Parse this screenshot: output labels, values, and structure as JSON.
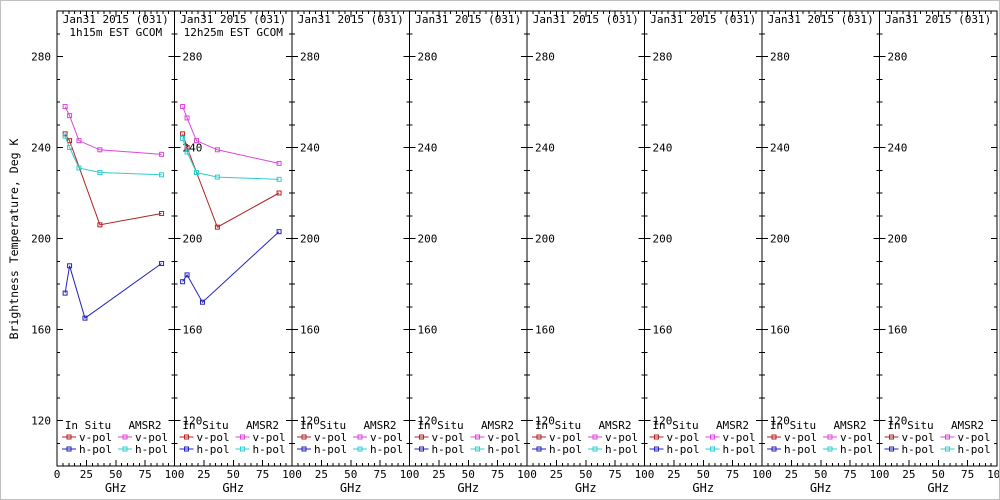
{
  "figure": {
    "ylabel": "Brightness Temperature, Deg K"
  },
  "colors": {
    "insitu_vpol": "#b22222",
    "amsr2_vpol": "#dd44dd",
    "insitu_hpol": "#2222bb",
    "amsr2_hpol": "#33cccc",
    "frame": "#000000",
    "background": "#ffffff"
  },
  "chart_data": {
    "type": "line",
    "xlabel": "GHz",
    "ylabel": "Brightness Temperature, Deg K",
    "x_range": [
      0,
      100
    ],
    "y_range": [
      100,
      300
    ],
    "x_ticks": [
      0,
      25,
      50,
      75,
      100
    ],
    "y_ticks": [
      280,
      240,
      200,
      160,
      120
    ],
    "grid": false,
    "legend_position": "inside-bottom",
    "legend": {
      "columns": [
        {
          "header": "In Situ",
          "entries": [
            {
              "label": "v-pol",
              "color": "insitu_vpol"
            },
            {
              "label": "h-pol",
              "color": "insitu_hpol"
            }
          ]
        },
        {
          "header": "AMSR2",
          "entries": [
            {
              "label": "v-pol",
              "color": "amsr2_vpol"
            },
            {
              "label": "h-pol",
              "color": "amsr2_hpol"
            }
          ]
        }
      ]
    },
    "panels": [
      {
        "title": "Jan31 2015 (031)",
        "subtitle": "1h15m EST GCOM",
        "show_zero_tick": true,
        "series": [
          {
            "name": "In Situ v-pol",
            "color": "insitu_vpol",
            "x": [
              6.9,
              10.7,
              36.5,
              89
            ],
            "y": [
              246,
              243,
              206,
              211
            ]
          },
          {
            "name": "AMSR2 v-pol",
            "color": "amsr2_vpol",
            "x": [
              6.9,
              10.7,
              18.7,
              36.5,
              89
            ],
            "y": [
              258,
              254,
              243,
              239,
              237
            ]
          },
          {
            "name": "In Situ h-pol",
            "color": "insitu_hpol",
            "x": [
              6.9,
              10.7,
              23.8,
              89
            ],
            "y": [
              176,
              188,
              165,
              189
            ]
          },
          {
            "name": "AMSR2 h-pol",
            "color": "amsr2_hpol",
            "x": [
              6.9,
              10.7,
              18.7,
              36.5,
              89
            ],
            "y": [
              245,
              240,
              231,
              229,
              228
            ]
          }
        ]
      },
      {
        "title": "Jan31 2015 (031)",
        "subtitle": "12h25m EST GCOM",
        "series": [
          {
            "name": "In Situ v-pol",
            "color": "insitu_vpol",
            "x": [
              6.9,
              10.7,
              36.5,
              89
            ],
            "y": [
              246,
              240,
              205,
              220
            ]
          },
          {
            "name": "AMSR2 v-pol",
            "color": "amsr2_vpol",
            "x": [
              6.9,
              10.7,
              18.7,
              36.5,
              89
            ],
            "y": [
              258,
              253,
              243,
              239,
              233
            ]
          },
          {
            "name": "In Situ h-pol",
            "color": "insitu_hpol",
            "x": [
              6.9,
              10.7,
              23.8,
              89
            ],
            "y": [
              181,
              184,
              172,
              203
            ]
          },
          {
            "name": "AMSR2 h-pol",
            "color": "amsr2_hpol",
            "x": [
              6.9,
              10.7,
              18.7,
              36.5,
              89
            ],
            "y": [
              244,
              238,
              229,
              227,
              226
            ]
          }
        ]
      },
      {
        "title": "Jan31 2015 (031)",
        "series": []
      },
      {
        "title": "Jan31 2015 (031)",
        "series": []
      },
      {
        "title": "Jan31 2015 (031)",
        "series": []
      },
      {
        "title": "Jan31 2015 (031)",
        "series": []
      },
      {
        "title": "Jan31 2015 (031)",
        "series": []
      },
      {
        "title": "Jan31 2015 (031)",
        "series": []
      }
    ]
  }
}
